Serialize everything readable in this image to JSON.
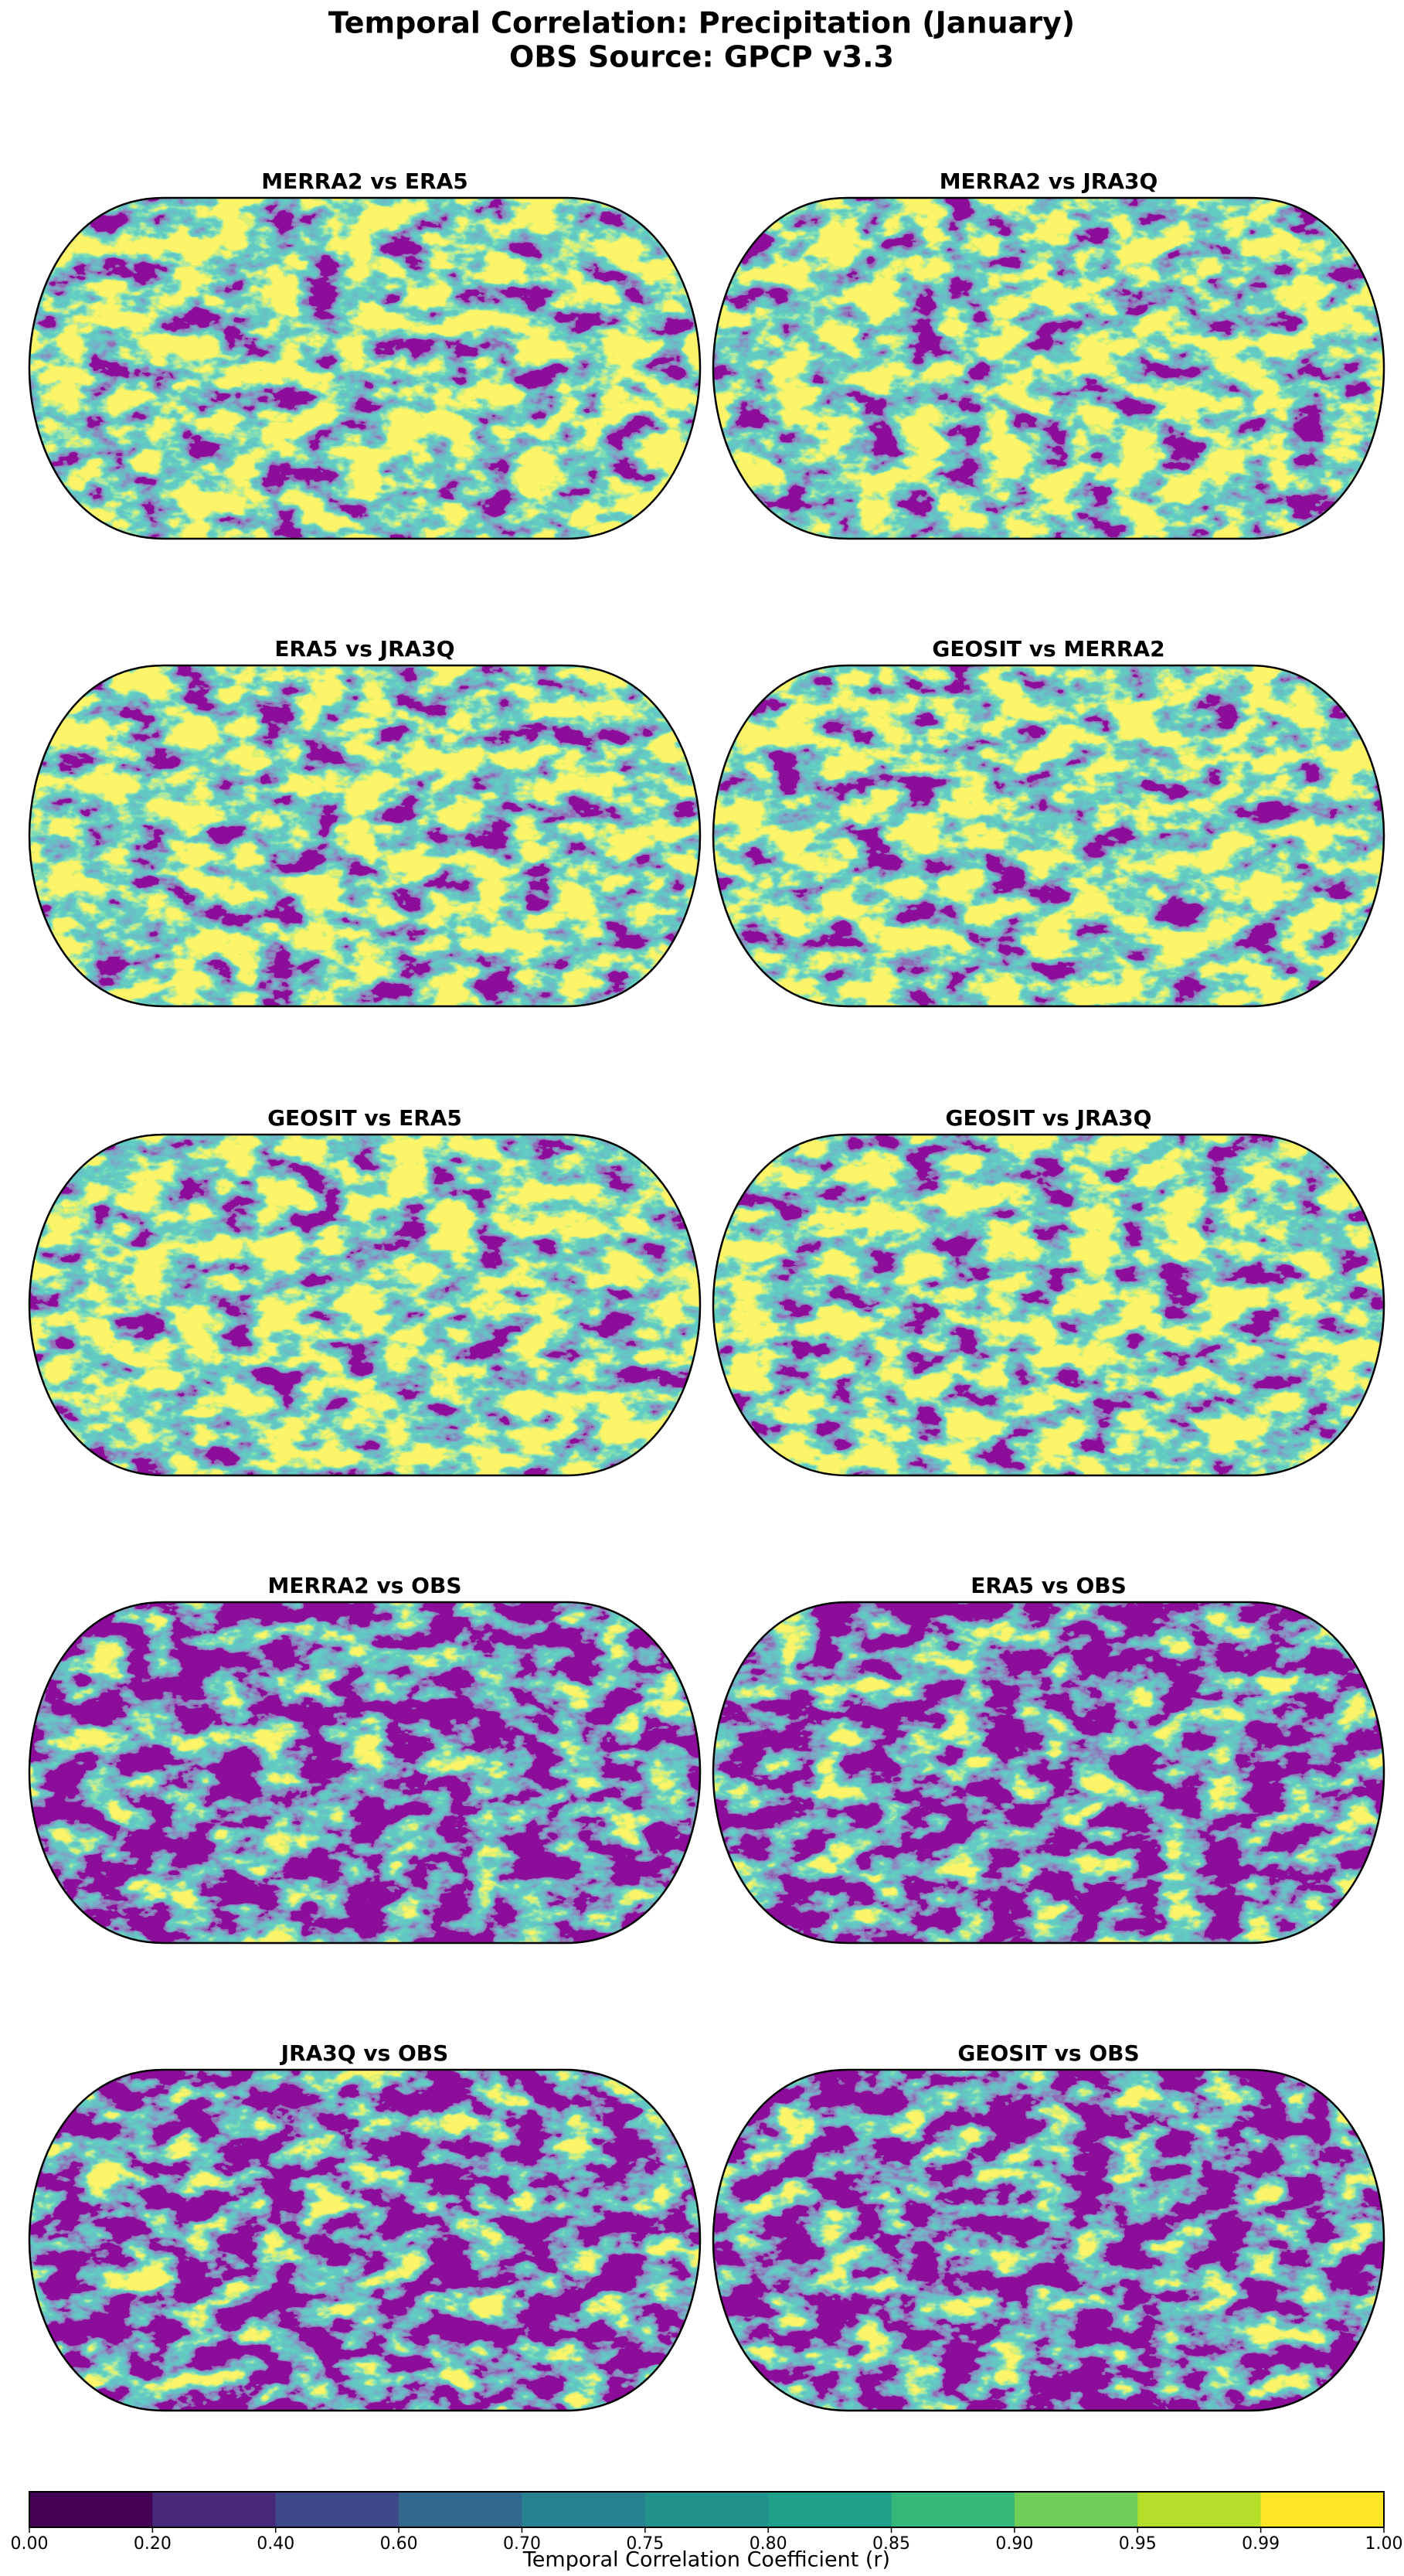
{
  "title": [
    "Temporal Correlation: Precipitation (January)",
    "OBS Source: GPCP v3.3"
  ],
  "panels": [
    {
      "title": "MERRA2 vs ERA5"
    },
    {
      "title": "MERRA2 vs JRA3Q"
    },
    {
      "title": "ERA5 vs JRA3Q"
    },
    {
      "title": "GEOSIT vs MERRA2"
    },
    {
      "title": "GEOSIT vs ERA5"
    },
    {
      "title": "GEOSIT vs JRA3Q"
    },
    {
      "title": "MERRA2 vs OBS"
    },
    {
      "title": "ERA5 vs OBS"
    },
    {
      "title": "JRA3Q vs OBS"
    },
    {
      "title": "GEOSIT vs OBS"
    }
  ],
  "colorbar": {
    "label": "Temporal Correlation Coefficient (r)",
    "ticks": [
      {
        "value": 0,
        "label": "0.00"
      },
      {
        "value": 0.2,
        "label": "0.20"
      },
      {
        "value": 0.4,
        "label": "0.40"
      },
      {
        "value": 0.6,
        "label": "0.60"
      },
      {
        "value": 0.7,
        "label": "0.70"
      },
      {
        "value": 0.75,
        "label": "0.75"
      },
      {
        "value": 0.8,
        "label": "0.80"
      },
      {
        "value": 0.85,
        "label": "0.85"
      },
      {
        "value": 0.9,
        "label": "0.90"
      },
      {
        "value": 0.95,
        "label": "0.95"
      },
      {
        "value": 0.99,
        "label": "0.99"
      },
      {
        "value": 1,
        "label": "1.00"
      }
    ],
    "colors": [
      "#440154",
      "#482878",
      "#3e4989",
      "#31688e",
      "#26828e",
      "#21918c",
      "#1f9e89",
      "#35b779",
      "#6ece58",
      "#b5de2b",
      "#fde725"
    ]
  }
}
